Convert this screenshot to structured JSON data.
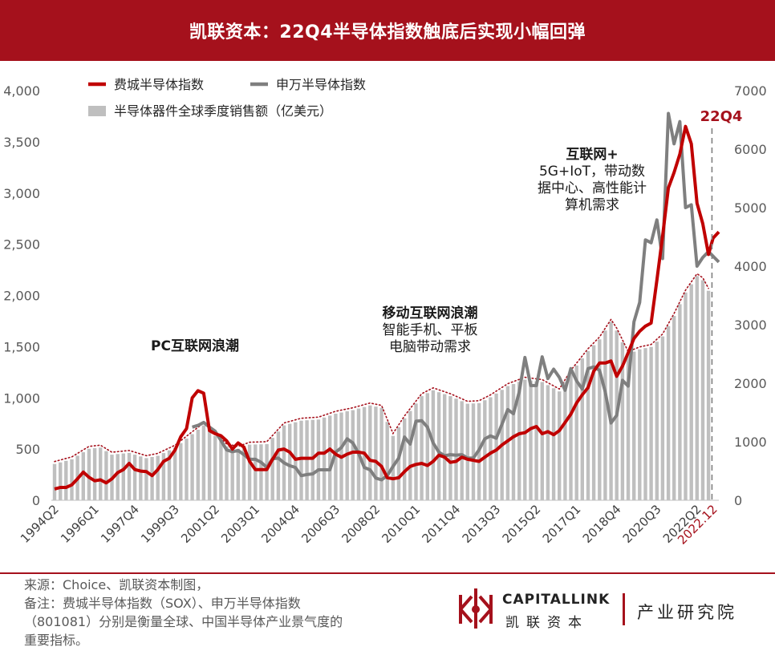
{
  "header": {
    "title": "凯联资本：22Q4半导体指数触底后实现小幅回弹"
  },
  "chart_data": {
    "type": "bar",
    "left_axis": {
      "ticks": [
        "0",
        "500",
        "1,000",
        "1,500",
        "2,000",
        "2,500",
        "3,000",
        "3,500",
        "4,000"
      ],
      "range": [
        0,
        4000
      ]
    },
    "right_axis": {
      "ticks": [
        "0",
        "1000",
        "2000",
        "3000",
        "4000",
        "5000",
        "6000",
        "7000"
      ],
      "range": [
        0,
        7000
      ]
    },
    "x_tick_labels": [
      "1994Q2",
      "1996Q1",
      "1997Q4",
      "1999Q3",
      "2001Q2",
      "2003Q1",
      "2004Q4",
      "2006Q3",
      "2008Q2",
      "2010Q1",
      "2011Q4",
      "2013Q3",
      "2015Q2",
      "2017Q1",
      "2018Q4",
      "2020Q3",
      "2022Q2",
      "2022.12"
    ],
    "x_range_years": [
      1994.25,
      2023.2
    ],
    "legend": [
      {
        "name": "费城半导体指数",
        "kind": "line",
        "color": "#c00000"
      },
      {
        "name": "申万半导体指数",
        "kind": "line",
        "color": "#7f7f7f"
      },
      {
        "name": "半导体器件全球季度销售额（亿美元）",
        "kind": "bar",
        "color": "#bfbfbf"
      }
    ],
    "annotations": [
      {
        "id": "pc",
        "lines": [
          "PC互联网浪潮"
        ],
        "bold_first": true
      },
      {
        "id": "mobile",
        "lines": [
          "移动互联网浪潮",
          "智能手机、平板",
          "电脑带动需求"
        ],
        "bold_first": true
      },
      {
        "id": "iot",
        "lines": [
          "互联网+",
          "5G+IoT，带动数",
          "据中心、高性能计",
          "算机需求"
        ],
        "bold_first": true
      },
      {
        "id": "q4",
        "lines": [
          "22Q4"
        ],
        "bold_first": true
      }
    ],
    "colors": {
      "sox": "#c00000",
      "sw": "#7f7f7f",
      "bars": "#bfbfbf",
      "bar_dots": "#a5111c",
      "accent": "#a5111c"
    },
    "series": [
      {
        "name": "费城半导体指数",
        "axis": "left",
        "points": [
          [
            1994.25,
            110
          ],
          [
            1994.5,
            125
          ],
          [
            1994.75,
            125
          ],
          [
            1995.0,
            150
          ],
          [
            1995.25,
            210
          ],
          [
            1995.5,
            275
          ],
          [
            1995.75,
            225
          ],
          [
            1996.0,
            190
          ],
          [
            1996.25,
            200
          ],
          [
            1996.5,
            170
          ],
          [
            1996.75,
            210
          ],
          [
            1997.0,
            270
          ],
          [
            1997.25,
            300
          ],
          [
            1997.5,
            360
          ],
          [
            1997.75,
            300
          ],
          [
            1998.0,
            285
          ],
          [
            1998.25,
            280
          ],
          [
            1998.5,
            240
          ],
          [
            1998.75,
            300
          ],
          [
            1999.0,
            380
          ],
          [
            1999.25,
            410
          ],
          [
            1999.5,
            490
          ],
          [
            1999.75,
            620
          ],
          [
            2000.0,
            700
          ],
          [
            2000.25,
            1000
          ],
          [
            2000.5,
            1070
          ],
          [
            2000.75,
            1045
          ],
          [
            2001.0,
            680
          ],
          [
            2001.25,
            650
          ],
          [
            2001.5,
            630
          ],
          [
            2001.75,
            580
          ],
          [
            2002.0,
            500
          ],
          [
            2002.25,
            560
          ],
          [
            2002.5,
            520
          ],
          [
            2002.75,
            380
          ],
          [
            2003.0,
            300
          ],
          [
            2003.25,
            300
          ],
          [
            2003.5,
            300
          ],
          [
            2003.75,
            400
          ],
          [
            2004.0,
            490
          ],
          [
            2004.25,
            500
          ],
          [
            2004.5,
            470
          ],
          [
            2004.75,
            400
          ],
          [
            2005.0,
            410
          ],
          [
            2005.25,
            410
          ],
          [
            2005.5,
            410
          ],
          [
            2005.75,
            460
          ],
          [
            2006.0,
            460
          ],
          [
            2006.25,
            500
          ],
          [
            2006.5,
            450
          ],
          [
            2006.75,
            420
          ],
          [
            2007.0,
            450
          ],
          [
            2007.25,
            470
          ],
          [
            2007.5,
            470
          ],
          [
            2007.75,
            460
          ],
          [
            2008.0,
            390
          ],
          [
            2008.25,
            380
          ],
          [
            2008.5,
            330
          ],
          [
            2008.75,
            220
          ],
          [
            2009.0,
            210
          ],
          [
            2009.25,
            220
          ],
          [
            2009.5,
            280
          ],
          [
            2009.75,
            330
          ],
          [
            2010.0,
            350
          ],
          [
            2010.25,
            360
          ],
          [
            2010.5,
            340
          ],
          [
            2010.75,
            380
          ],
          [
            2011.0,
            440
          ],
          [
            2011.25,
            420
          ],
          [
            2011.5,
            370
          ],
          [
            2011.75,
            380
          ],
          [
            2012.0,
            420
          ],
          [
            2012.25,
            400
          ],
          [
            2012.5,
            390
          ],
          [
            2012.75,
            380
          ],
          [
            2013.0,
            420
          ],
          [
            2013.25,
            460
          ],
          [
            2013.5,
            490
          ],
          [
            2013.75,
            540
          ],
          [
            2014.0,
            580
          ],
          [
            2014.25,
            620
          ],
          [
            2014.5,
            650
          ],
          [
            2014.75,
            660
          ],
          [
            2015.0,
            700
          ],
          [
            2015.25,
            720
          ],
          [
            2015.5,
            650
          ],
          [
            2015.75,
            670
          ],
          [
            2016.0,
            640
          ],
          [
            2016.25,
            680
          ],
          [
            2016.5,
            760
          ],
          [
            2016.75,
            840
          ],
          [
            2017.0,
            950
          ],
          [
            2017.25,
            1030
          ],
          [
            2017.5,
            1100
          ],
          [
            2017.75,
            1260
          ],
          [
            2018.0,
            1340
          ],
          [
            2018.25,
            1340
          ],
          [
            2018.5,
            1360
          ],
          [
            2018.75,
            1210
          ],
          [
            2019.0,
            1310
          ],
          [
            2019.25,
            1440
          ],
          [
            2019.5,
            1580
          ],
          [
            2019.75,
            1650
          ],
          [
            2020.0,
            1700
          ],
          [
            2020.25,
            1730
          ],
          [
            2020.5,
            2150
          ],
          [
            2020.75,
            2580
          ],
          [
            2021.0,
            3050
          ],
          [
            2021.25,
            3200
          ],
          [
            2021.5,
            3380
          ],
          [
            2021.75,
            3650
          ],
          [
            2022.0,
            3480
          ],
          [
            2022.25,
            2900
          ],
          [
            2022.5,
            2700
          ],
          [
            2022.75,
            2400
          ],
          [
            2022.95,
            2560
          ],
          [
            2023.2,
            2620
          ]
        ]
      },
      {
        "name": "申万半导体指数",
        "axis": "right",
        "points": [
          [
            2000.25,
            1250
          ],
          [
            2000.5,
            1280
          ],
          [
            2000.75,
            1330
          ],
          [
            2001.0,
            1250
          ],
          [
            2001.25,
            1180
          ],
          [
            2001.5,
            1020
          ],
          [
            2001.75,
            860
          ],
          [
            2002.0,
            830
          ],
          [
            2002.25,
            850
          ],
          [
            2002.5,
            780
          ],
          [
            2002.75,
            700
          ],
          [
            2003.0,
            700
          ],
          [
            2003.25,
            650
          ],
          [
            2003.5,
            560
          ],
          [
            2003.75,
            710
          ],
          [
            2004.0,
            720
          ],
          [
            2004.25,
            640
          ],
          [
            2004.5,
            590
          ],
          [
            2004.75,
            560
          ],
          [
            2005.0,
            420
          ],
          [
            2005.25,
            440
          ],
          [
            2005.5,
            450
          ],
          [
            2005.75,
            520
          ],
          [
            2006.0,
            520
          ],
          [
            2006.25,
            520
          ],
          [
            2006.5,
            820
          ],
          [
            2006.75,
            900
          ],
          [
            2007.0,
            1050
          ],
          [
            2007.25,
            980
          ],
          [
            2007.5,
            800
          ],
          [
            2007.75,
            560
          ],
          [
            2008.0,
            520
          ],
          [
            2008.25,
            380
          ],
          [
            2008.5,
            350
          ],
          [
            2008.75,
            420
          ],
          [
            2009.0,
            580
          ],
          [
            2009.25,
            720
          ],
          [
            2009.5,
            1080
          ],
          [
            2009.75,
            960
          ],
          [
            2010.0,
            1350
          ],
          [
            2010.25,
            1360
          ],
          [
            2010.5,
            1250
          ],
          [
            2010.75,
            980
          ],
          [
            2011.0,
            820
          ],
          [
            2011.25,
            760
          ],
          [
            2011.5,
            780
          ],
          [
            2011.75,
            770
          ],
          [
            2012.0,
            780
          ],
          [
            2012.25,
            720
          ],
          [
            2012.5,
            720
          ],
          [
            2012.75,
            860
          ],
          [
            2013.0,
            1050
          ],
          [
            2013.25,
            1100
          ],
          [
            2013.5,
            1060
          ],
          [
            2013.75,
            1300
          ],
          [
            2014.0,
            1550
          ],
          [
            2014.25,
            1480
          ],
          [
            2014.5,
            1850
          ],
          [
            2014.75,
            2440
          ],
          [
            2015.0,
            1960
          ],
          [
            2015.25,
            1960
          ],
          [
            2015.5,
            2450
          ],
          [
            2015.75,
            2080
          ],
          [
            2016.0,
            2240
          ],
          [
            2016.25,
            2100
          ],
          [
            2016.5,
            1880
          ],
          [
            2016.75,
            2250
          ],
          [
            2017.0,
            2040
          ],
          [
            2017.25,
            1900
          ],
          [
            2017.5,
            2250
          ],
          [
            2017.75,
            2280
          ],
          [
            2018.0,
            2220
          ],
          [
            2018.25,
            1850
          ],
          [
            2018.5,
            1320
          ],
          [
            2018.75,
            1450
          ],
          [
            2019.0,
            2050
          ],
          [
            2019.25,
            1950
          ],
          [
            2019.5,
            3050
          ],
          [
            2019.75,
            3380
          ],
          [
            2020.0,
            4450
          ],
          [
            2020.25,
            4400
          ],
          [
            2020.5,
            4790
          ],
          [
            2020.75,
            4130
          ],
          [
            2021.0,
            6610
          ],
          [
            2021.25,
            6090
          ],
          [
            2021.5,
            6470
          ],
          [
            2021.75,
            5000
          ],
          [
            2022.0,
            5050
          ],
          [
            2022.25,
            4000
          ],
          [
            2022.5,
            4150
          ],
          [
            2022.75,
            4250
          ],
          [
            2023.0,
            4150
          ],
          [
            2023.2,
            4070
          ]
        ]
      },
      {
        "name": "半导体器件全球季度销售额（亿美元）",
        "axis": "right",
        "points": [
          [
            1994.25,
            620
          ],
          [
            1995.0,
            700
          ],
          [
            1995.75,
            880
          ],
          [
            1996.25,
            900
          ],
          [
            1996.75,
            780
          ],
          [
            1997.5,
            810
          ],
          [
            1998.25,
            720
          ],
          [
            1998.75,
            760
          ],
          [
            1999.5,
            900
          ],
          [
            2000.25,
            1130
          ],
          [
            2000.75,
            1280
          ],
          [
            2001.25,
            1100
          ],
          [
            2001.75,
            920
          ],
          [
            2002.25,
            880
          ],
          [
            2002.75,
            950
          ],
          [
            2003.5,
            960
          ],
          [
            2004.25,
            1280
          ],
          [
            2005.0,
            1360
          ],
          [
            2005.75,
            1380
          ],
          [
            2006.5,
            1480
          ],
          [
            2007.25,
            1540
          ],
          [
            2008.0,
            1620
          ],
          [
            2008.5,
            1580
          ],
          [
            2009.0,
            1100
          ],
          [
            2009.5,
            1400
          ],
          [
            2010.25,
            1780
          ],
          [
            2010.75,
            1880
          ],
          [
            2011.5,
            1780
          ],
          [
            2012.25,
            1650
          ],
          [
            2012.75,
            1660
          ],
          [
            2013.25,
            1760
          ],
          [
            2014.0,
            1950
          ],
          [
            2014.75,
            2060
          ],
          [
            2015.5,
            2020
          ],
          [
            2016.25,
            1860
          ],
          [
            2016.75,
            2180
          ],
          [
            2017.5,
            2550
          ],
          [
            2018.0,
            2750
          ],
          [
            2018.5,
            3050
          ],
          [
            2018.75,
            2900
          ],
          [
            2019.25,
            2500
          ],
          [
            2019.75,
            2580
          ],
          [
            2020.25,
            2620
          ],
          [
            2020.75,
            2800
          ],
          [
            2021.25,
            3150
          ],
          [
            2021.75,
            3550
          ],
          [
            2022.25,
            3830
          ],
          [
            2022.5,
            3760
          ],
          [
            2022.75,
            3580
          ]
        ]
      }
    ]
  },
  "footer": {
    "note_lines": [
      "来源：Choice、凯联资本制图，",
      "备注：费城半导体指数（SOX）、申万半导体指数",
      "（801081）分别是衡量全球、中国半导体产业景气度的",
      "重要指标。"
    ]
  },
  "brand": {
    "name_en": "CAPITALLINK",
    "name_cn": "凯联资本",
    "department": "产业研究院"
  }
}
